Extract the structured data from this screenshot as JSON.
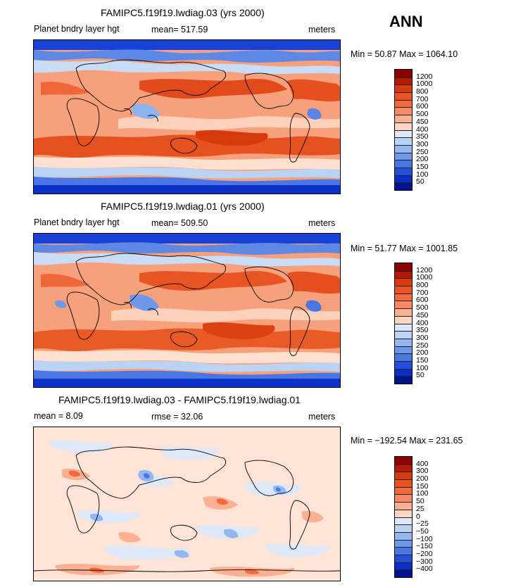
{
  "season_label": "ANN",
  "panels": [
    {
      "title": "FAMIPC5.f19f19.lwdiag.03 (yrs 2000)",
      "left_label": "Planet bndry layer hgt",
      "mean_label": "mean= 517.59",
      "units": "meters",
      "minmax": "Min =   50.87  Max = 1064.10"
    },
    {
      "title": "FAMIPC5.f19f19.lwdiag.01 (yrs 2000)",
      "left_label": "Planet bndry layer hgt",
      "mean_label": "mean= 509.50",
      "units": "meters",
      "minmax": "Min =   51.77  Max = 1001.85"
    },
    {
      "title": "FAMIPC5.f19f19.lwdiag.03 - FAMIPC5.f19f19.lwdiag.01",
      "left_label": "mean =     8.09",
      "mean_label": "rmse =   32.06",
      "units": "meters",
      "minmax": "Min = −192.54  Max = 231.65"
    }
  ],
  "colorbars": [
    {
      "levels": [
        "1200",
        "1000",
        "800",
        "700",
        "600",
        "500",
        "450",
        "400",
        "350",
        "300",
        "250",
        "200",
        "150",
        "100",
        "50"
      ],
      "colors": [
        "#8b0000",
        "#b51a00",
        "#d93a0d",
        "#ea5326",
        "#f56a3c",
        "#fa8a64",
        "#fcb092",
        "#fdd6c2",
        "#dde9f9",
        "#bad3f5",
        "#94b7f0",
        "#6e98ea",
        "#4876e2",
        "#2250d8",
        "#0b2ec7",
        "#00148e"
      ]
    },
    {
      "levels": [
        "1200",
        "1000",
        "800",
        "700",
        "600",
        "500",
        "450",
        "400",
        "350",
        "300",
        "250",
        "200",
        "150",
        "100",
        "50"
      ],
      "colors": [
        "#8b0000",
        "#b51a00",
        "#d93a0d",
        "#ea5326",
        "#f56a3c",
        "#fa8a64",
        "#fcb092",
        "#fdd6c2",
        "#dde9f9",
        "#bad3f5",
        "#94b7f0",
        "#6e98ea",
        "#4876e2",
        "#2250d8",
        "#0b2ec7",
        "#00148e"
      ]
    },
    {
      "levels": [
        "400",
        "300",
        "200",
        "150",
        "100",
        "50",
        "25",
        "0",
        "−25",
        "−50",
        "−100",
        "−150",
        "−200",
        "−300",
        "−400"
      ],
      "colors": [
        "#8b0000",
        "#b51a00",
        "#d93a0d",
        "#ea5326",
        "#f56a3c",
        "#fa8a64",
        "#fcb092",
        "#fdd6c2",
        "#dde9f9",
        "#bad3f5",
        "#94b7f0",
        "#6e98ea",
        "#4876e2",
        "#2250d8",
        "#0b2ec7",
        "#00148e"
      ]
    }
  ],
  "chart_data": [
    {
      "type": "heatmap",
      "title": "FAMIPC5.f19f19.lwdiag.03 (yrs 2000)",
      "variable": "Planet bndry layer hgt",
      "units": "meters",
      "season": "ANN",
      "mean": 517.59,
      "min": 50.87,
      "max": 1064.1,
      "contour_levels": [
        50,
        100,
        150,
        200,
        250,
        300,
        350,
        400,
        450,
        500,
        600,
        700,
        800,
        1000,
        1200
      ]
    },
    {
      "type": "heatmap",
      "title": "FAMIPC5.f19f19.lwdiag.01 (yrs 2000)",
      "variable": "Planet bndry layer hgt",
      "units": "meters",
      "season": "ANN",
      "mean": 509.5,
      "min": 51.77,
      "max": 1001.85,
      "contour_levels": [
        50,
        100,
        150,
        200,
        250,
        300,
        350,
        400,
        450,
        500,
        600,
        700,
        800,
        1000,
        1200
      ]
    },
    {
      "type": "heatmap",
      "title": "FAMIPC5.f19f19.lwdiag.03 - FAMIPC5.f19f19.lwdiag.01",
      "units": "meters",
      "mean": 8.09,
      "rmse": 32.06,
      "min": -192.54,
      "max": 231.65,
      "contour_levels": [
        -400,
        -300,
        -200,
        -150,
        -100,
        -50,
        -25,
        0,
        25,
        50,
        100,
        150,
        200,
        300,
        400
      ]
    }
  ]
}
